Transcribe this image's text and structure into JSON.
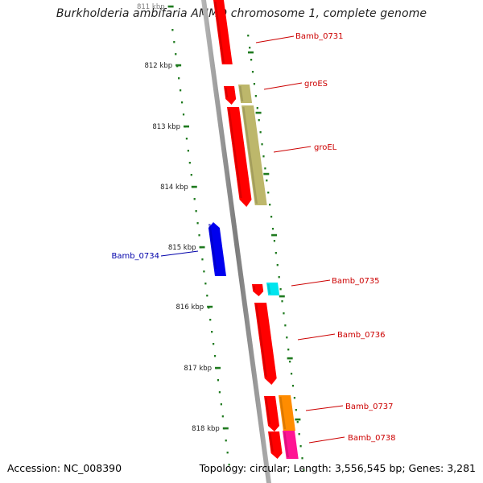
{
  "title": "Burkholderia ambifaria AMMD chromosome 1, complete genome",
  "footer": {
    "accession": "Accession: NC_008390",
    "summary": "Topology: circular; Length: 3,556,545 bp; Genes: 3,281"
  },
  "ticks": {
    "labels": [
      "811 kbp",
      "812 kbp",
      "813 kbp",
      "814 kbp",
      "815 kbp",
      "816 kbp",
      "817 kbp",
      "818 kbp"
    ],
    "color": "#1f7a1f"
  },
  "genes": [
    {
      "id": "Bamb_0731",
      "label": "Bamb_0731",
      "strand": "reverse",
      "color": "#ff0000"
    },
    {
      "id": "groES",
      "label": "groES",
      "strand": "reverse",
      "color": "#ff0000"
    },
    {
      "id": "groES-match",
      "label": "",
      "strand": "reverse",
      "color": "#bdb76b"
    },
    {
      "id": "groEL",
      "label": "groEL",
      "strand": "reverse",
      "color": "#ff0000"
    },
    {
      "id": "groEL-match",
      "label": "",
      "strand": "reverse",
      "color": "#bdb76b"
    },
    {
      "id": "Bamb_0734",
      "label": "Bamb_0734",
      "strand": "forward",
      "color": "#0000ee"
    },
    {
      "id": "Bamb_0735",
      "label": "Bamb_0735",
      "strand": "reverse",
      "color": "#ff0000"
    },
    {
      "id": "Bamb_0735-match",
      "label": "",
      "strand": "reverse",
      "color": "#00e5ee"
    },
    {
      "id": "Bamb_0736",
      "label": "Bamb_0736",
      "strand": "reverse",
      "color": "#ff0000"
    },
    {
      "id": "Bamb_0737",
      "label": "Bamb_0737",
      "strand": "reverse",
      "color": "#ff0000"
    },
    {
      "id": "Bamb_0737-match",
      "label": "",
      "strand": "reverse",
      "color": "#ff8c00"
    },
    {
      "id": "Bamb_0738",
      "label": "Bamb_0738",
      "strand": "reverse",
      "color": "#ff0000"
    },
    {
      "id": "Bamb_0738-match",
      "label": "",
      "strand": "reverse",
      "color": "#ff1493"
    }
  ],
  "colors": {
    "backbone": "#8a8a8a",
    "label_red": "#cc0000",
    "label_blue": "#0000aa",
    "background": "#ffffff"
  }
}
